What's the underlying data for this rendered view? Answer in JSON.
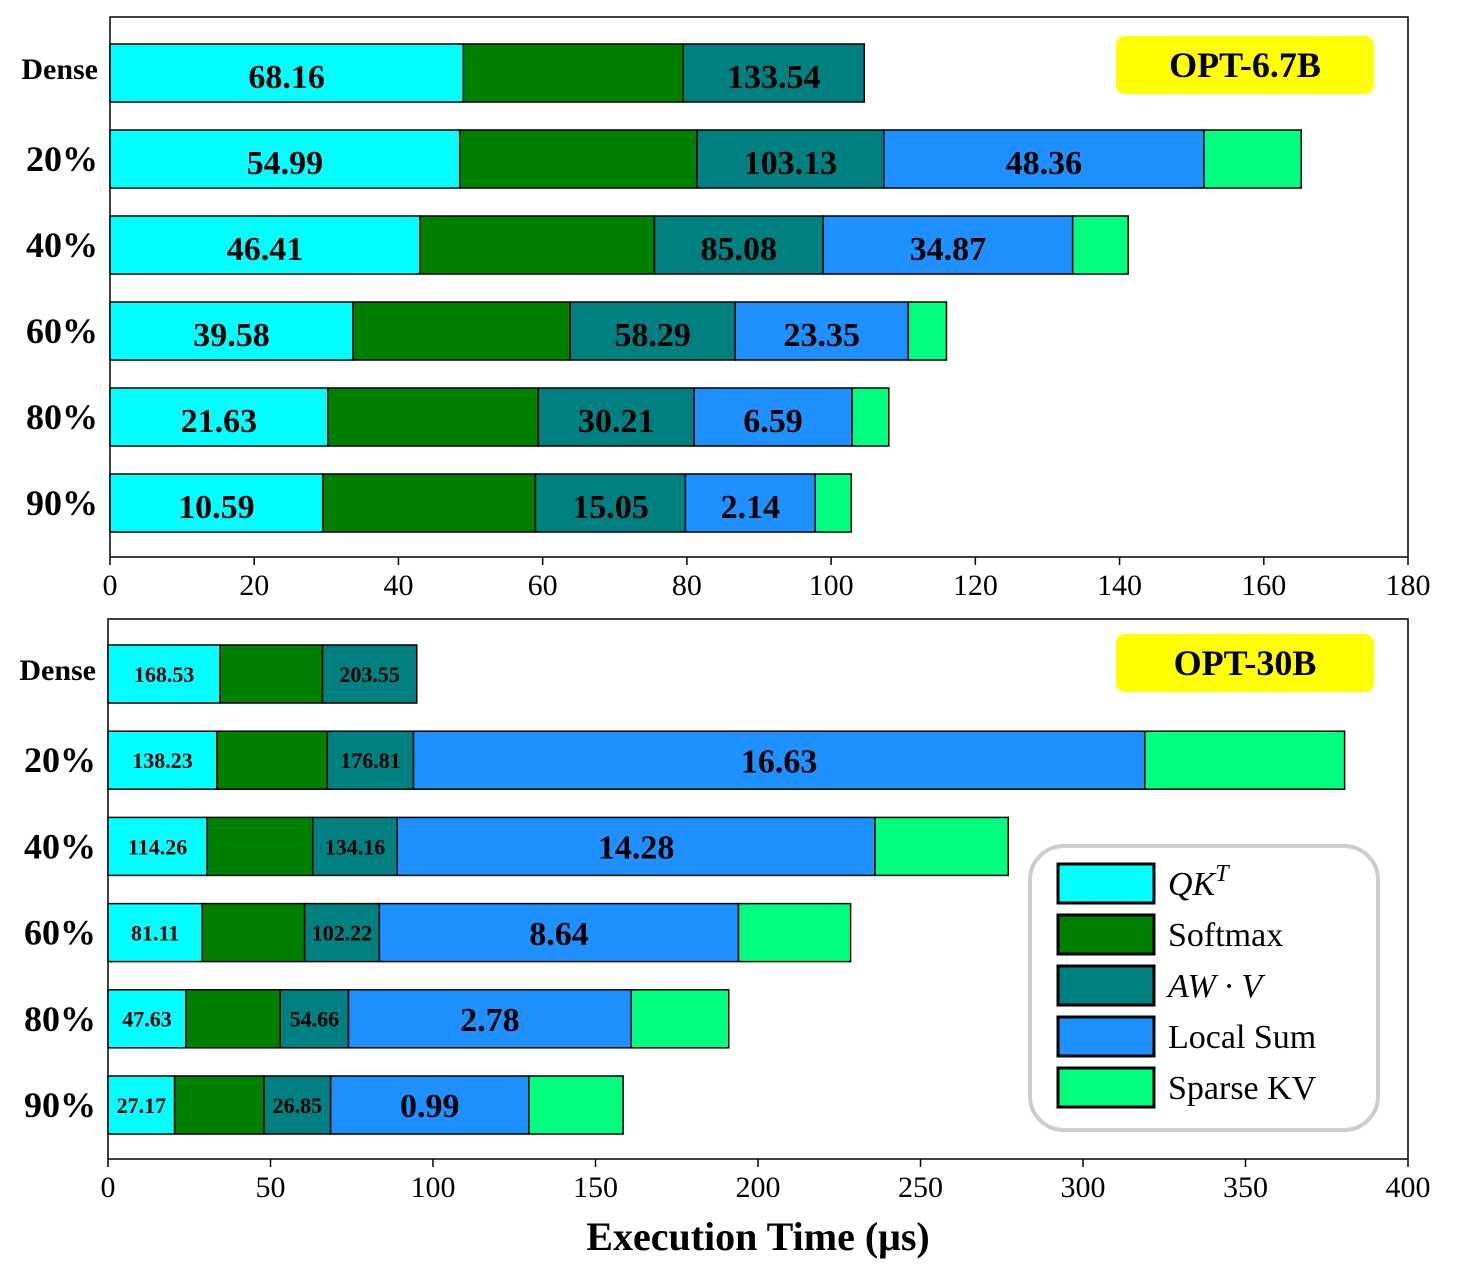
{
  "colors": {
    "QK^T": "#00ffff",
    "Softmax": "#008000",
    "AW·V": "#008080",
    "Local Sum": "#1e90ff",
    "Sparse KV": "#00ff7f",
    "tag_bg": "#ffff00"
  },
  "legend": {
    "items": [
      {
        "key": "QK^T",
        "label_main": "QK",
        "label_sup": "T",
        "italic": true
      },
      {
        "key": "Softmax",
        "label_main": "Softmax",
        "italic": false
      },
      {
        "key": "AW·V",
        "label_main": "AW · V",
        "italic": true
      },
      {
        "key": "Local Sum",
        "label_main": "Local Sum",
        "italic": false
      },
      {
        "key": "Sparse KV",
        "label_main": "Sparse KV",
        "italic": false
      }
    ]
  },
  "chart_data": [
    {
      "type": "bar",
      "orientation": "horizontal",
      "stacked": true,
      "model": "OPT-6.7B",
      "xlabel": "",
      "xlim": [
        0,
        180
      ],
      "xticks": [
        0,
        20,
        40,
        60,
        80,
        100,
        120,
        140,
        160,
        180
      ],
      "categories": [
        "Dense",
        "20%",
        "40%",
        "60%",
        "80%",
        "90%"
      ],
      "series": [
        {
          "name": "QK^T",
          "values": [
            49.0,
            48.5,
            43.0,
            33.7,
            30.2,
            29.5
          ]
        },
        {
          "name": "Softmax",
          "values": [
            30.5,
            32.9,
            32.5,
            30.1,
            29.2,
            29.5
          ]
        },
        {
          "name": "AW·V",
          "values": [
            25.1,
            25.9,
            23.4,
            22.9,
            21.6,
            20.8
          ]
        },
        {
          "name": "Local Sum",
          "values": [
            0,
            44.4,
            34.6,
            24.0,
            21.9,
            18.0
          ]
        },
        {
          "name": "Sparse KV",
          "values": [
            0,
            13.5,
            7.7,
            5.3,
            5.1,
            5.0
          ]
        }
      ],
      "labels": [
        {
          "series": "QK^T",
          "values": [
            "68.16",
            "54.99",
            "46.41",
            "39.58",
            "21.63",
            "10.59"
          ]
        },
        {
          "series": "AW·V",
          "values": [
            "133.54",
            "103.13",
            "85.08",
            "58.29",
            "30.21",
            "15.05"
          ]
        },
        {
          "series": "Local Sum",
          "values": [
            "",
            "48.36",
            "34.87",
            "23.35",
            "6.59",
            "2.14"
          ]
        }
      ]
    },
    {
      "type": "bar",
      "orientation": "horizontal",
      "stacked": true,
      "model": "OPT-30B",
      "xlabel": "Execution Time (μs)",
      "xlim": [
        0,
        400
      ],
      "xticks": [
        0,
        50,
        100,
        150,
        200,
        250,
        300,
        350,
        400
      ],
      "categories": [
        "Dense",
        "20%",
        "40%",
        "60%",
        "80%",
        "90%"
      ],
      "series": [
        {
          "name": "QK^T",
          "values": [
            34.5,
            33.5,
            30.5,
            29.0,
            24.0,
            20.5
          ]
        },
        {
          "name": "Softmax",
          "values": [
            31.5,
            34.0,
            32.5,
            31.5,
            29.0,
            27.5
          ]
        },
        {
          "name": "AW·V",
          "values": [
            29.0,
            26.5,
            26.0,
            23.0,
            21.0,
            20.5
          ]
        },
        {
          "name": "Local Sum",
          "values": [
            0,
            225.0,
            147.0,
            110.5,
            87.0,
            61.0
          ]
        },
        {
          "name": "Sparse KV",
          "values": [
            0,
            61.5,
            41.0,
            34.5,
            30.0,
            29.0
          ]
        }
      ],
      "labels": [
        {
          "series": "QK^T",
          "values": [
            "168.53",
            "138.23",
            "114.26",
            "81.11",
            "47.63",
            "27.17"
          ]
        },
        {
          "series": "AW·V",
          "values": [
            "203.55",
            "176.81",
            "134.16",
            "102.22",
            "54.66",
            "26.85"
          ]
        },
        {
          "series": "Local Sum",
          "values": [
            "",
            "16.63",
            "14.28",
            "8.64",
            "2.78",
            "0.99"
          ]
        }
      ]
    }
  ]
}
